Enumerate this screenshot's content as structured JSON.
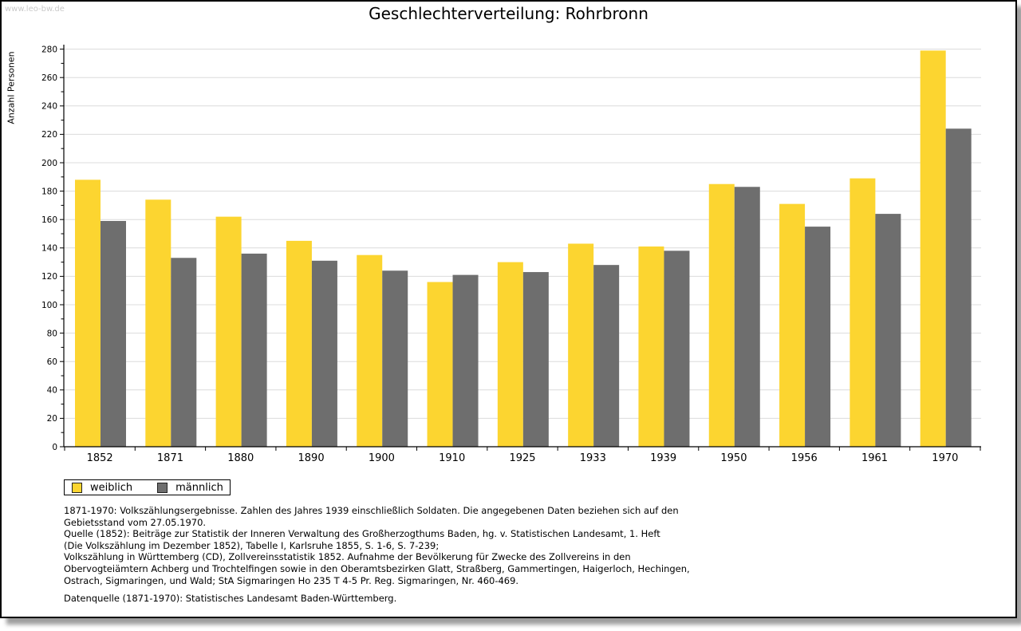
{
  "page": {
    "watermark": "www.leo-bw.de",
    "title": "Geschlechterverteilung: Rohrbronn"
  },
  "chart_data": {
    "type": "bar",
    "title": "Geschlechterverteilung: Rohrbronn",
    "xlabel": "",
    "ylabel": "Anzahl Personen",
    "ylim": [
      0,
      280
    ],
    "ytick_step": 20,
    "yminor_tick_step": 10,
    "grid": true,
    "legend_position": "bottom-left",
    "categories": [
      "1852",
      "1871",
      "1880",
      "1890",
      "1900",
      "1910",
      "1925",
      "1933",
      "1939",
      "1950",
      "1956",
      "1961",
      "1970"
    ],
    "series": [
      {
        "name": "weiblich",
        "color": "#FCD530",
        "values": [
          188,
          174,
          162,
          145,
          135,
          116,
          130,
          143,
          141,
          185,
          171,
          189,
          279
        ]
      },
      {
        "name": "männlich",
        "color": "#6E6E6E",
        "values": [
          159,
          133,
          136,
          131,
          124,
          121,
          123,
          128,
          138,
          183,
          155,
          164,
          224
        ]
      }
    ]
  },
  "colors": {
    "grid": "#DCDCDC",
    "axis": "#000000",
    "watermark": "#C9C9C9",
    "frame_shadow": "#9E9E9E"
  },
  "footer": {
    "lines": [
      "1871-1970: Volkszählungsergebnisse. Zahlen des Jahres 1939 einschließlich Soldaten. Die angegebenen Daten beziehen sich auf den",
      "Gebietsstand vom 27.05.1970.",
      "Quelle (1852): Beiträge zur Statistik der Inneren Verwaltung des Großherzogthums Baden, hg. v. Statistischen Landesamt, 1. Heft",
      "(Die Volkszählung im Dezember 1852), Tabelle I, Karlsruhe 1855, S. 1-6, S. 7-239;",
      "Volkszählung in Württemberg (CD), Zollvereinsstatistik 1852. Aufnahme der Bevölkerung für Zwecke des Zollvereins in den",
      "Obervogteiämtern Achberg und Trochtelfingen sowie in den Oberamtsbezirken Glatt, Straßberg, Gammertingen, Haigerloch, Hechingen,",
      "Ostrach, Sigmaringen, und Wald; StA Sigmaringen Ho 235 T 4-5 Pr. Reg. Sigmaringen, Nr. 460-469."
    ],
    "source": "Datenquelle (1871-1970): Statistisches Landesamt Baden-Württemberg."
  }
}
